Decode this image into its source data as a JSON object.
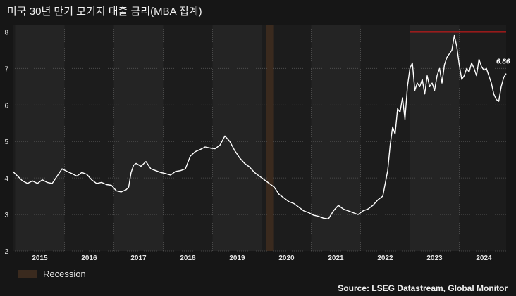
{
  "title": "미국 30년 만기 모기지 대출 금리(MBA 집계)",
  "source": "Source: LSEG Datastream, Global Monitor",
  "legend": {
    "label": "Recession"
  },
  "chart_data": {
    "type": "line",
    "title": "미국 30년 만기 모기지 대출 금리(MBA 집계)",
    "xlabel": "",
    "ylabel": "",
    "xlim": [
      2014.45,
      2024.45
    ],
    "ylim": [
      2,
      8.2
    ],
    "yticks": [
      "2",
      "3",
      "4",
      "5",
      "6",
      "7",
      "8"
    ],
    "xticks": [
      "2015",
      "2016",
      "2017",
      "2018",
      "2019",
      "2020",
      "2021",
      "2022",
      "2023",
      "2024"
    ],
    "grid": true,
    "recession": [
      2019.59,
      2019.73
    ],
    "reference_line": {
      "y": 8.0,
      "x_start": 2022.5,
      "x_end": 2024.45,
      "color": "#e01818"
    },
    "end_label": "6.86",
    "line_color": "#ffffff",
    "series": [
      {
        "x": [
          2014.45,
          2014.55,
          2014.65,
          2014.75,
          2014.85,
          2014.95,
          2015.05,
          2015.15,
          2015.25,
          2015.35,
          2015.45,
          2015.55,
          2015.65,
          2015.75,
          2015.85,
          2015.95,
          2016.05,
          2016.15,
          2016.25,
          2016.35,
          2016.45,
          2016.55,
          2016.65,
          2016.75,
          2016.8,
          2016.85,
          2016.9,
          2016.95,
          2017.05,
          2017.15,
          2017.25,
          2017.35,
          2017.45,
          2017.55,
          2017.65,
          2017.75,
          2017.85,
          2017.95,
          2018.05,
          2018.15,
          2018.25,
          2018.35,
          2018.45,
          2018.55,
          2018.65,
          2018.75,
          2018.85,
          2018.95,
          2019.05,
          2019.15,
          2019.25,
          2019.35,
          2019.45,
          2019.55,
          2019.65,
          2019.75,
          2019.85,
          2019.95,
          2020.05,
          2020.15,
          2020.25,
          2020.35,
          2020.45,
          2020.55,
          2020.65,
          2020.75,
          2020.85,
          2020.95,
          2021.05,
          2021.15,
          2021.25,
          2021.35,
          2021.45,
          2021.55,
          2021.65,
          2021.75,
          2021.85,
          2021.95,
          2022.05,
          2022.1,
          2022.15,
          2022.2,
          2022.25,
          2022.3,
          2022.35,
          2022.4,
          2022.45,
          2022.5,
          2022.55,
          2022.6,
          2022.65,
          2022.7,
          2022.75,
          2022.8,
          2022.85,
          2022.9,
          2022.95,
          2023.0,
          2023.05,
          2023.1,
          2023.15,
          2023.2,
          2023.25,
          2023.3,
          2023.35,
          2023.4,
          2023.45,
          2023.5,
          2023.55,
          2023.6,
          2023.65,
          2023.7,
          2023.75,
          2023.8,
          2023.85,
          2023.9,
          2023.95,
          2024.0,
          2024.05,
          2024.1,
          2024.15,
          2024.2,
          2024.25,
          2024.3,
          2024.35,
          2024.4,
          2024.45
        ],
        "y": [
          4.18,
          4.05,
          3.92,
          3.85,
          3.92,
          3.85,
          3.95,
          3.88,
          3.85,
          4.05,
          4.25,
          4.18,
          4.12,
          4.05,
          4.15,
          4.1,
          3.95,
          3.85,
          3.88,
          3.82,
          3.8,
          3.65,
          3.62,
          3.68,
          3.75,
          4.15,
          4.35,
          4.4,
          4.32,
          4.45,
          4.25,
          4.2,
          4.15,
          4.12,
          4.08,
          4.18,
          4.2,
          4.25,
          4.6,
          4.72,
          4.78,
          4.85,
          4.82,
          4.8,
          4.9,
          5.15,
          5.0,
          4.75,
          4.55,
          4.4,
          4.3,
          4.15,
          4.05,
          3.95,
          3.85,
          3.75,
          3.55,
          3.45,
          3.35,
          3.3,
          3.2,
          3.1,
          3.05,
          2.98,
          2.95,
          2.9,
          2.88,
          3.1,
          3.25,
          3.15,
          3.1,
          3.05,
          3.0,
          3.1,
          3.15,
          3.25,
          3.4,
          3.5,
          4.2,
          4.9,
          5.4,
          5.2,
          5.9,
          5.8,
          6.2,
          5.6,
          6.5,
          7.0,
          7.15,
          6.4,
          6.6,
          6.5,
          6.7,
          6.3,
          6.8,
          6.5,
          6.6,
          6.4,
          6.8,
          7.0,
          6.6,
          7.1,
          7.3,
          7.4,
          7.5,
          7.9,
          7.6,
          7.1,
          6.7,
          6.8,
          7.0,
          6.9,
          7.15,
          7.0,
          6.8,
          7.25,
          7.05,
          6.95,
          7.0,
          6.8,
          6.6,
          6.3,
          6.15,
          6.1,
          6.5,
          6.75,
          6.86
        ]
      }
    ]
  }
}
